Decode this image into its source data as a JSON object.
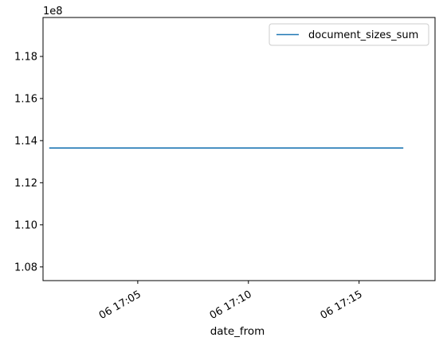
{
  "chart_data": {
    "type": "line",
    "xlabel": "date_from",
    "ylabel": "",
    "y_offset_label": "1e8",
    "x_ticks": [
      {
        "value": "06 17:05",
        "label": "06 17:05"
      },
      {
        "value": "06 17:10",
        "label": "06 17:10"
      },
      {
        "value": "06 17:15",
        "label": "06 17:15"
      }
    ],
    "y_ticks": [
      {
        "value": 1.08,
        "label": "1.08"
      },
      {
        "value": 1.1,
        "label": "1.10"
      },
      {
        "value": 1.12,
        "label": "1.12"
      },
      {
        "value": 1.14,
        "label": "1.14"
      },
      {
        "value": 1.16,
        "label": "1.16"
      },
      {
        "value": 1.18,
        "label": "1.18"
      }
    ],
    "xlim": [
      "06 17:00",
      "06 17:18"
    ],
    "ylim": [
      1.0735,
      1.1985
    ],
    "grid": false,
    "legend_position": "top-right",
    "series": [
      {
        "name": "document_sizes_sum",
        "color": "#1f77b4",
        "x": [
          "06 17:01",
          "06 17:17"
        ],
        "y": [
          1.1365,
          1.1365
        ]
      }
    ]
  }
}
